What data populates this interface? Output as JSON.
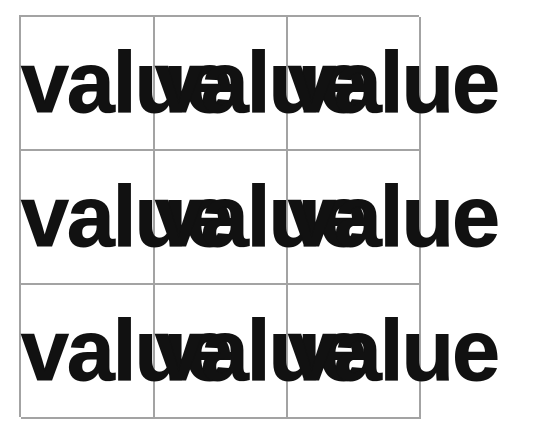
{
  "table": {
    "rows": [
      [
        "value",
        "value",
        "value"
      ],
      [
        "value",
        "value",
        "value"
      ],
      [
        "value",
        "value",
        "value"
      ]
    ]
  }
}
